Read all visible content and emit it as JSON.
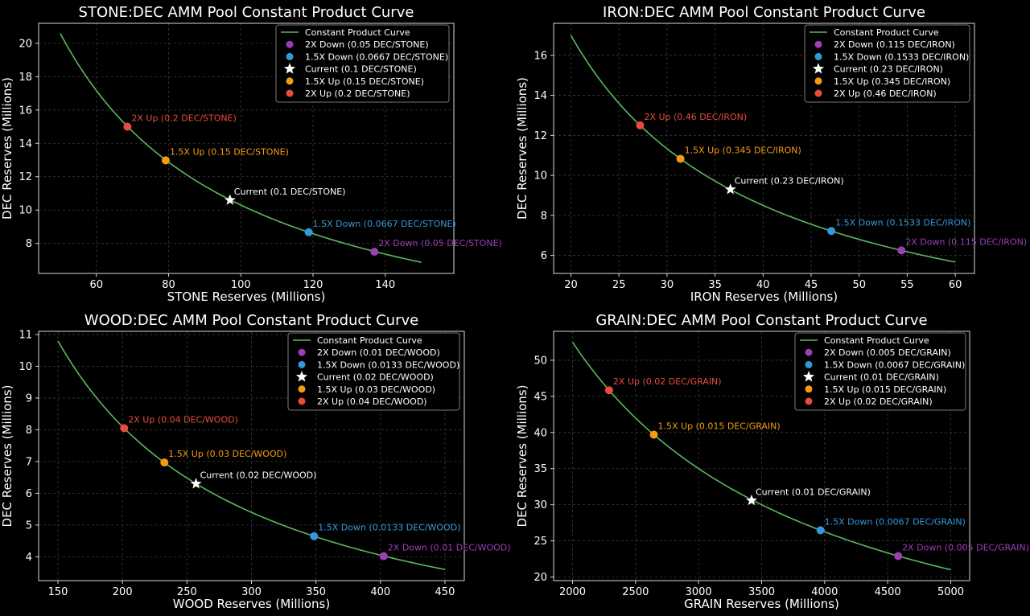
{
  "colors": {
    "background": "#000000",
    "axes_frame": "#d9d9d9",
    "grid": "#3a3a3a",
    "text": "#ffffff",
    "curve": "#5cb85c",
    "down2": "#9b3fb5",
    "down15": "#3498db",
    "current": "#ffffff",
    "up15": "#f39c12",
    "up2": "#e74c3c"
  },
  "chart_data": [
    {
      "type": "line",
      "title": "STONE:DEC AMM Pool Constant Product Curve",
      "xlabel": "STONE Reserves (Millions)",
      "ylabel": "DEC Reserves (Millions)",
      "xlim": [
        44,
        159
      ],
      "ylim": [
        6.2,
        21.2
      ],
      "xticks": [
        "60",
        "80",
        "100",
        "120",
        "140"
      ],
      "yticks": [
        "8",
        "10",
        "12",
        "14",
        "16",
        "18",
        "20"
      ],
      "grid": true,
      "legend_position": "top-right",
      "curve": {
        "name": "Constant Product Curve",
        "k": 1030,
        "x_range": [
          50,
          150
        ]
      },
      "points": [
        {
          "key": "down2",
          "legend": "2X Down (0.05 DEC/STONE)",
          "label": "2X Down (0.05 DEC/STONE)",
          "x": 137,
          "y": 7.5,
          "marker": "circle"
        },
        {
          "key": "down15",
          "legend": "1.5X Down (0.0667 DEC/STONE)",
          "label": "1.5X Down (0.0667 DEC/STONE)",
          "x": 118.8,
          "y": 8.67,
          "marker": "circle"
        },
        {
          "key": "current",
          "legend": "Current (0.1 DEC/STONE)",
          "label": "Current (0.1 DEC/STONE)",
          "x": 97,
          "y": 10.6,
          "marker": "star"
        },
        {
          "key": "up15",
          "legend": "1.5X Up (0.15 DEC/STONE)",
          "label": "1.5X Up (0.15 DEC/STONE)",
          "x": 79.2,
          "y": 12.98,
          "marker": "circle"
        },
        {
          "key": "up2",
          "legend": "2X Up (0.2 DEC/STONE)",
          "label": "2X Up (0.2 DEC/STONE)",
          "x": 68.6,
          "y": 15.0,
          "marker": "circle"
        }
      ]
    },
    {
      "type": "line",
      "title": "IRON:DEC AMM Pool Constant Product Curve",
      "xlabel": "IRON Reserves (Millions)",
      "ylabel": "DEC Reserves (Millions)",
      "xlim": [
        18.2,
        62
      ],
      "ylim": [
        5.1,
        17.6
      ],
      "xticks": [
        "20",
        "25",
        "30",
        "35",
        "40",
        "45",
        "50",
        "55",
        "60"
      ],
      "yticks": [
        "6",
        "8",
        "10",
        "12",
        "14",
        "16"
      ],
      "grid": true,
      "legend_position": "top-right",
      "curve": {
        "name": "Constant Product Curve",
        "k": 340,
        "x_range": [
          20,
          60
        ]
      },
      "points": [
        {
          "key": "down2",
          "legend": "2X Down (0.115 DEC/IRON)",
          "label": "2X Down (0.115 DEC/IRON)",
          "x": 54.4,
          "y": 6.25,
          "marker": "circle"
        },
        {
          "key": "down15",
          "legend": "1.5X Down (0.1533 DEC/IRON)",
          "label": "1.5X Down (0.1533 DEC/IRON)",
          "x": 47.1,
          "y": 7.22,
          "marker": "circle"
        },
        {
          "key": "current",
          "legend": "Current (0.23 DEC/IRON)",
          "label": "Current (0.23 DEC/IRON)",
          "x": 36.6,
          "y": 9.3,
          "marker": "star"
        },
        {
          "key": "up15",
          "legend": "1.5X Up (0.345 DEC/IRON)",
          "label": "1.5X Up (0.345 DEC/IRON)",
          "x": 31.4,
          "y": 10.83,
          "marker": "circle"
        },
        {
          "key": "up2",
          "legend": "2X Up (0.46 DEC/IRON)",
          "label": "2X Up (0.46 DEC/IRON)",
          "x": 27.2,
          "y": 12.5,
          "marker": "circle"
        }
      ]
    },
    {
      "type": "line",
      "title": "WOOD:DEC AMM Pool Constant Product Curve",
      "xlabel": "WOOD Reserves (Millions)",
      "ylabel": "DEC Reserves (Millions)",
      "xlim": [
        135,
        465
      ],
      "ylim": [
        3.25,
        11.1
      ],
      "xticks": [
        "150",
        "200",
        "250",
        "300",
        "350",
        "400",
        "450"
      ],
      "yticks": [
        "4",
        "5",
        "6",
        "7",
        "8",
        "9",
        "10",
        "11"
      ],
      "grid": true,
      "legend_position": "top-right",
      "curve": {
        "name": "Constant Product Curve",
        "k": 1620,
        "x_range": [
          150,
          450
        ]
      },
      "points": [
        {
          "key": "down2",
          "legend": "2X Down (0.01 DEC/WOOD)",
          "label": "2X Down (0.01 DEC/WOOD)",
          "x": 402.5,
          "y": 4.02,
          "marker": "circle"
        },
        {
          "key": "down15",
          "legend": "1.5X Down (0.0133 DEC/WOOD)",
          "label": "1.5X Down (0.0133 DEC/WOOD)",
          "x": 348.5,
          "y": 4.65,
          "marker": "circle"
        },
        {
          "key": "current",
          "legend": "Current (0.02 DEC/WOOD)",
          "label": "Current (0.02 DEC/WOOD)",
          "x": 257,
          "y": 6.3,
          "marker": "star"
        },
        {
          "key": "up15",
          "legend": "1.5X Up (0.03 DEC/WOOD)",
          "label": "1.5X Up (0.03 DEC/WOOD)",
          "x": 232.5,
          "y": 6.97,
          "marker": "circle"
        },
        {
          "key": "up2",
          "legend": "2X Up (0.04 DEC/WOOD)",
          "label": "2X Up (0.04 DEC/WOOD)",
          "x": 201.3,
          "y": 8.05,
          "marker": "circle"
        }
      ]
    },
    {
      "type": "line",
      "title": "GRAIN:DEC AMM Pool Constant Product Curve",
      "xlabel": "GRAIN Reserves (Millions)",
      "ylabel": "DEC Reserves (Millions)",
      "xlim": [
        1850,
        5150
      ],
      "ylim": [
        19.5,
        54.0
      ],
      "xticks": [
        "2000",
        "2500",
        "3000",
        "3500",
        "4000",
        "4500",
        "5000"
      ],
      "yticks": [
        "20",
        "25",
        "30",
        "35",
        "40",
        "45",
        "50"
      ],
      "grid": true,
      "legend_position": "top-right",
      "curve": {
        "name": "Constant Product Curve",
        "k": 105000,
        "x_range": [
          2000,
          5000
        ]
      },
      "points": [
        {
          "key": "down2",
          "legend": "2X Down (0.005 DEC/GRAIN)",
          "label": "2X Down (0.005 DEC/GRAIN)",
          "x": 4583,
          "y": 22.9,
          "marker": "circle"
        },
        {
          "key": "down15",
          "legend": "1.5X Down (0.0067 DEC/GRAIN)",
          "label": "1.5X Down (0.0067 DEC/GRAIN)",
          "x": 3967,
          "y": 26.47,
          "marker": "circle"
        },
        {
          "key": "current",
          "legend": "Current (0.01 DEC/GRAIN)",
          "label": "Current (0.01 DEC/GRAIN)",
          "x": 3420,
          "y": 30.6,
          "marker": "star"
        },
        {
          "key": "up15",
          "legend": "1.5X Up (0.015 DEC/GRAIN)",
          "label": "1.5X Up (0.015 DEC/GRAIN)",
          "x": 2645,
          "y": 39.7,
          "marker": "circle"
        },
        {
          "key": "up2",
          "legend": "2X Up (0.02 DEC/GRAIN)",
          "label": "2X Up (0.02 DEC/GRAIN)",
          "x": 2290,
          "y": 45.85,
          "marker": "circle"
        }
      ]
    }
  ]
}
